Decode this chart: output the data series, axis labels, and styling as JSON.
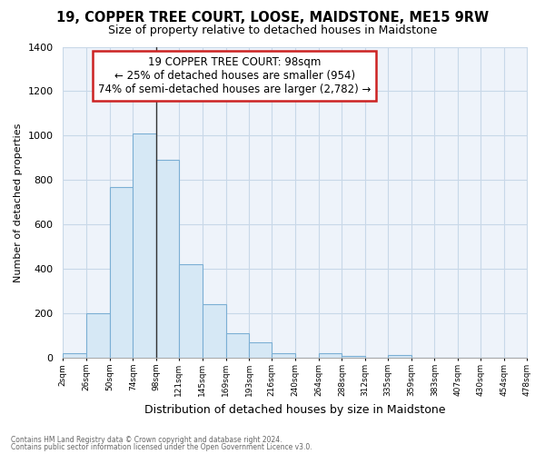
{
  "title": "19, COPPER TREE COURT, LOOSE, MAIDSTONE, ME15 9RW",
  "subtitle": "Size of property relative to detached houses in Maidstone",
  "xlabel": "Distribution of detached houses by size in Maidstone",
  "ylabel": "Number of detached properties",
  "bar_edges": [
    2,
    26,
    50,
    74,
    98,
    121,
    145,
    169,
    193,
    216,
    240,
    264,
    288,
    312,
    335,
    359,
    383,
    407,
    430,
    454,
    478
  ],
  "bar_heights": [
    20,
    200,
    770,
    1010,
    890,
    420,
    240,
    110,
    70,
    20,
    0,
    20,
    10,
    0,
    15,
    0,
    0,
    0,
    0,
    0
  ],
  "bar_color": "#d6e8f5",
  "bar_edge_color": "#7bafd4",
  "property_size": 98,
  "annotation_title": "19 COPPER TREE COURT: 98sqm",
  "annotation_line1": "← 25% of detached houses are smaller (954)",
  "annotation_line2": "74% of semi-detached houses are larger (2,782) →",
  "annotation_box_color": "#ffffff",
  "annotation_box_edge": "#cc2222",
  "ylim": [
    0,
    1400
  ],
  "yticks": [
    0,
    200,
    400,
    600,
    800,
    1000,
    1200,
    1400
  ],
  "tick_labels": [
    "2sqm",
    "26sqm",
    "50sqm",
    "74sqm",
    "98sqm",
    "121sqm",
    "145sqm",
    "169sqm",
    "193sqm",
    "216sqm",
    "240sqm",
    "264sqm",
    "288sqm",
    "312sqm",
    "335sqm",
    "359sqm",
    "383sqm",
    "407sqm",
    "430sqm",
    "454sqm",
    "478sqm"
  ],
  "footer_line1": "Contains HM Land Registry data © Crown copyright and database right 2024.",
  "footer_line2": "Contains public sector information licensed under the Open Government Licence v3.0.",
  "background_color": "#ffffff",
  "plot_bg_color": "#eef3fa",
  "grid_color": "#c8d8e8",
  "vline_color": "#333333",
  "title_fontsize": 10.5,
  "subtitle_fontsize": 9
}
